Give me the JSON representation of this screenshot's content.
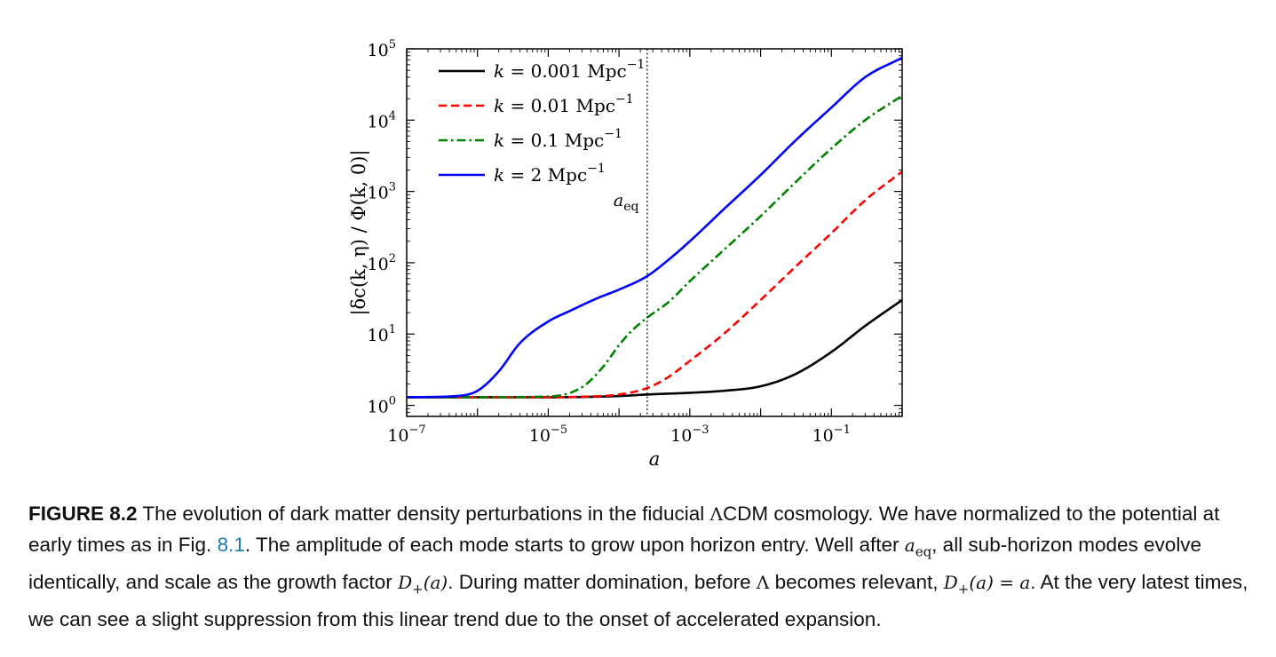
{
  "chart_data": {
    "type": "line",
    "x_scale": "log",
    "y_scale": "log",
    "xlim": [
      1e-07,
      1
    ],
    "ylim": [
      0.7,
      100000
    ],
    "xlabel": "a",
    "ylabel": "|δc(k, η) / Φ(k, 0)|",
    "x_ticks": [
      {
        "value": 1e-07,
        "base": "10",
        "exp": "−7"
      },
      {
        "value": 1e-05,
        "base": "10",
        "exp": "−5"
      },
      {
        "value": 0.001,
        "base": "10",
        "exp": "−3"
      },
      {
        "value": 0.1,
        "base": "10",
        "exp": "−1"
      }
    ],
    "y_ticks": [
      {
        "value": 1,
        "base": "10",
        "exp": "0"
      },
      {
        "value": 10,
        "base": "10",
        "exp": "1"
      },
      {
        "value": 100,
        "base": "10",
        "exp": "2"
      },
      {
        "value": 1000,
        "base": "10",
        "exp": "3"
      },
      {
        "value": 10000,
        "base": "10",
        "exp": "4"
      },
      {
        "value": 100000,
        "base": "10",
        "exp": "5"
      }
    ],
    "legend_position": "top-left",
    "grid": false,
    "series": [
      {
        "name": "k = 0.001 Mpc⁻¹",
        "label_main": "k = 0.001 Mpc",
        "label_exp": "−1",
        "color": "#000000",
        "dash": "solid",
        "x": [
          1e-07,
          1e-06,
          1e-05,
          0.0001,
          0.00025,
          0.001,
          0.003,
          0.01,
          0.03,
          0.1,
          0.3,
          1
        ],
        "y": [
          1.3,
          1.3,
          1.3,
          1.35,
          1.42,
          1.5,
          1.6,
          1.85,
          2.7,
          5.6,
          13,
          30
        ]
      },
      {
        "name": "k = 0.01 Mpc⁻¹",
        "label_main": "k = 0.01 Mpc",
        "label_exp": "−1",
        "color": "#ff0000",
        "dash": "dashed",
        "x": [
          1e-07,
          1e-06,
          1e-05,
          3e-05,
          0.0001,
          0.00025,
          0.0005,
          0.001,
          0.003,
          0.01,
          0.03,
          0.1,
          0.3,
          1
        ],
        "y": [
          1.3,
          1.3,
          1.3,
          1.32,
          1.42,
          1.75,
          2.5,
          4.2,
          10,
          30,
          85,
          260,
          750,
          1900
        ]
      },
      {
        "name": "k = 0.1 Mpc⁻¹",
        "label_main": "k = 0.1 Mpc",
        "label_exp": "−1",
        "color": "#008000",
        "dash": "dashdot",
        "x": [
          1e-07,
          1e-06,
          1e-05,
          3e-05,
          6e-05,
          0.0001,
          0.00015,
          0.00025,
          0.0005,
          0.001,
          0.003,
          0.01,
          0.03,
          0.1,
          0.3,
          1
        ],
        "y": [
          1.3,
          1.3,
          1.33,
          1.8,
          3.5,
          7,
          11,
          17,
          28,
          55,
          150,
          450,
          1300,
          4000,
          10000,
          22000
        ]
      },
      {
        "name": "k = 2 Mpc⁻¹",
        "label_main": "k = 2 Mpc",
        "label_exp": "−1",
        "color": "#0000ff",
        "dash": "solid",
        "x": [
          1e-07,
          5e-07,
          1e-06,
          2e-06,
          4e-06,
          1e-05,
          2e-05,
          5e-05,
          0.0001,
          0.00025,
          0.0005,
          0.001,
          0.003,
          0.01,
          0.03,
          0.1,
          0.3,
          1
        ],
        "y": [
          1.3,
          1.35,
          1.6,
          3,
          7.5,
          15,
          21,
          32,
          42,
          65,
          110,
          200,
          560,
          1700,
          5000,
          15000,
          40000,
          75000
        ]
      }
    ],
    "annotations": [
      {
        "text_main": "a",
        "text_sub": "eq",
        "x": 0.00025,
        "style": "vertical-dotted-line"
      }
    ]
  },
  "caption": {
    "label": "FIGURE 8.2",
    "p1": " The evolution of dark matter density perturbations in the fiducial ",
    "lambda": "Λ",
    "p2": "CDM cosmology. We have normalized to the potential at early times as in Fig. ",
    "ref": "8.1",
    "p3": ". The amplitude of each mode starts to grow upon horizon entry. Well after ",
    "aeq_main": "a",
    "aeq_sub": "eq",
    "p4": ", all sub-horizon modes evolve identically, and scale as the growth factor ",
    "dplus": "D",
    "dplus_sub": "+",
    "dplus_arg": "(a)",
    "p5": ". During matter domination, before ",
    "lambda2": "Λ",
    "p6": " becomes relevant, ",
    "eq_lhs": "D",
    "eq_lhs_sub": "+",
    "eq_rhs": "(a) = a",
    "p7": ". At the very latest times, we can see a slight suppression from this linear trend due to the onset of accelerated expansion."
  }
}
